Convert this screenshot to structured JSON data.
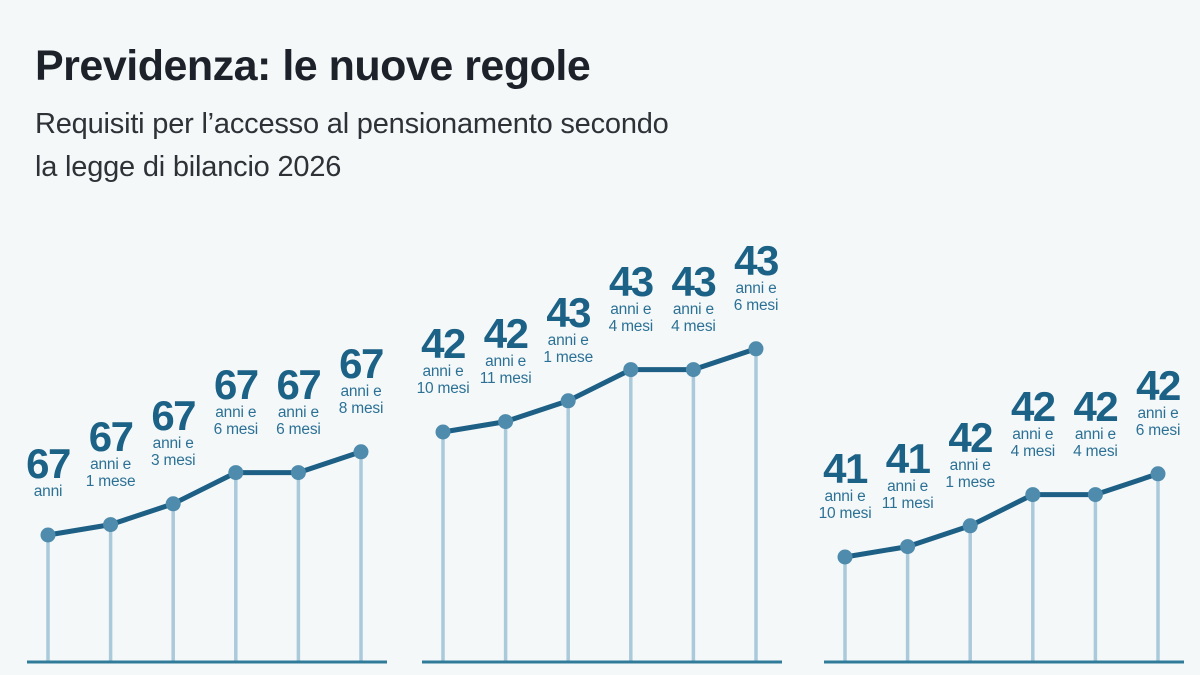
{
  "header": {
    "title": "Previdenza: le nuove regole",
    "subtitle_lines": [
      "Requisiti per l’accesso al pensionamento secondo",
      "la legge di bilancio 2026"
    ]
  },
  "colors": {
    "background": "#f4f8f9",
    "title": "#1d2129",
    "subtitle": "#2e3237",
    "number": "#1c6186",
    "small_label": "#2c7195",
    "line": "#1e6085",
    "dot": "#4e8bac",
    "stem": "#aac9db",
    "baseline": "#2f7b99"
  },
  "chart_data": [
    {
      "type": "line",
      "style": "lollipop-line",
      "points": [
        {
          "big": "67",
          "small": [
            "anni"
          ],
          "years": 67,
          "months": 0
        },
        {
          "big": "67",
          "small": [
            "anni e",
            "1 mese"
          ],
          "years": 67,
          "months": 1
        },
        {
          "big": "67",
          "small": [
            "anni e",
            "3 mesi"
          ],
          "years": 67,
          "months": 3
        },
        {
          "big": "67",
          "small": [
            "anni e",
            "6 mesi"
          ],
          "years": 67,
          "months": 6
        },
        {
          "big": "67",
          "small": [
            "anni e",
            "6 mesi"
          ],
          "years": 67,
          "months": 6
        },
        {
          "big": "67",
          "small": [
            "anni e",
            "8 mesi"
          ],
          "years": 67,
          "months": 8
        }
      ]
    },
    {
      "type": "line",
      "style": "lollipop-line",
      "points": [
        {
          "big": "42",
          "small": [
            "anni e",
            "10 mesi"
          ],
          "years": 42,
          "months": 10
        },
        {
          "big": "42",
          "small": [
            "anni e",
            "11 mesi"
          ],
          "years": 42,
          "months": 11
        },
        {
          "big": "43",
          "small": [
            "anni e",
            "1 mese"
          ],
          "years": 43,
          "months": 1
        },
        {
          "big": "43",
          "small": [
            "anni e",
            "4 mesi"
          ],
          "years": 43,
          "months": 4
        },
        {
          "big": "43",
          "small": [
            "anni e",
            "4 mesi"
          ],
          "years": 43,
          "months": 4
        },
        {
          "big": "43",
          "small": [
            "anni e",
            "6 mesi"
          ],
          "years": 43,
          "months": 6
        }
      ]
    },
    {
      "type": "line",
      "style": "lollipop-line",
      "points": [
        {
          "big": "41",
          "small": [
            "anni e",
            "10 mesi"
          ],
          "years": 41,
          "months": 10
        },
        {
          "big": "41",
          "small": [
            "anni e",
            "11 mesi"
          ],
          "years": 41,
          "months": 11
        },
        {
          "big": "42",
          "small": [
            "anni e",
            "1 mese"
          ],
          "years": 42,
          "months": 1
        },
        {
          "big": "42",
          "small": [
            "anni e",
            "4 mesi"
          ],
          "years": 42,
          "months": 4
        },
        {
          "big": "42",
          "small": [
            "anni e",
            "4 mesi"
          ],
          "years": 42,
          "months": 4
        },
        {
          "big": "42",
          "small": [
            "anni e",
            "6 mesi"
          ],
          "years": 42,
          "months": 6
        }
      ]
    }
  ]
}
